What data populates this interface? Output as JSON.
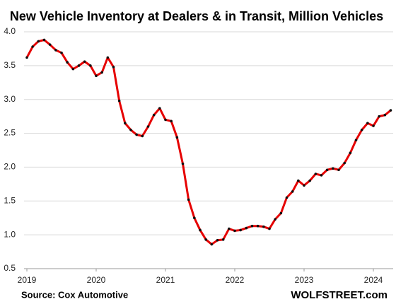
{
  "chart_data": {
    "type": "line",
    "title": "New Vehicle Inventory at Dealers & in Transit, Million Vehicles",
    "source": "Source: Cox Automotive",
    "watermark": "WOLFSTREET.com",
    "categories": [
      "2019",
      null,
      null,
      null,
      null,
      null,
      null,
      null,
      null,
      null,
      null,
      null,
      "2020",
      null,
      null,
      null,
      null,
      null,
      null,
      null,
      null,
      null,
      null,
      null,
      "2021",
      null,
      null,
      null,
      null,
      null,
      null,
      null,
      null,
      null,
      null,
      null,
      "2022",
      null,
      null,
      null,
      null,
      null,
      null,
      null,
      null,
      null,
      null,
      null,
      "2023",
      null,
      null,
      null,
      null,
      null,
      null,
      null,
      null,
      null,
      null,
      null,
      "2024",
      null,
      null,
      null
    ],
    "series": [
      {
        "name": "New Vehicle Inventory",
        "color": "#e60000",
        "marker_color": "#111111",
        "values": [
          3.62,
          3.78,
          3.86,
          3.88,
          3.81,
          3.73,
          3.69,
          3.55,
          3.45,
          3.5,
          3.56,
          3.5,
          3.35,
          3.4,
          3.62,
          3.48,
          2.98,
          2.65,
          2.55,
          2.48,
          2.46,
          2.6,
          2.77,
          2.87,
          2.7,
          2.68,
          2.44,
          2.05,
          1.52,
          1.25,
          1.07,
          0.93,
          0.86,
          0.92,
          0.93,
          1.09,
          1.06,
          1.07,
          1.1,
          1.13,
          1.13,
          1.12,
          1.09,
          1.23,
          1.32,
          1.55,
          1.64,
          1.8,
          1.73,
          1.8,
          1.9,
          1.88,
          1.96,
          1.98,
          1.96,
          2.06,
          2.21,
          2.4,
          2.55,
          2.65,
          2.61,
          2.75,
          2.77,
          2.84
        ]
      }
    ],
    "ylim": [
      0.5,
      4
    ],
    "yticks": [
      0.5,
      {
        "value": 1,
        "label": "1.0"
      },
      1.5,
      {
        "value": 2,
        "label": "2.0"
      },
      2.5,
      {
        "value": 3,
        "label": "3.0"
      },
      3.5,
      {
        "value": 4,
        "label": "4.0"
      }
    ],
    "grid": true
  }
}
